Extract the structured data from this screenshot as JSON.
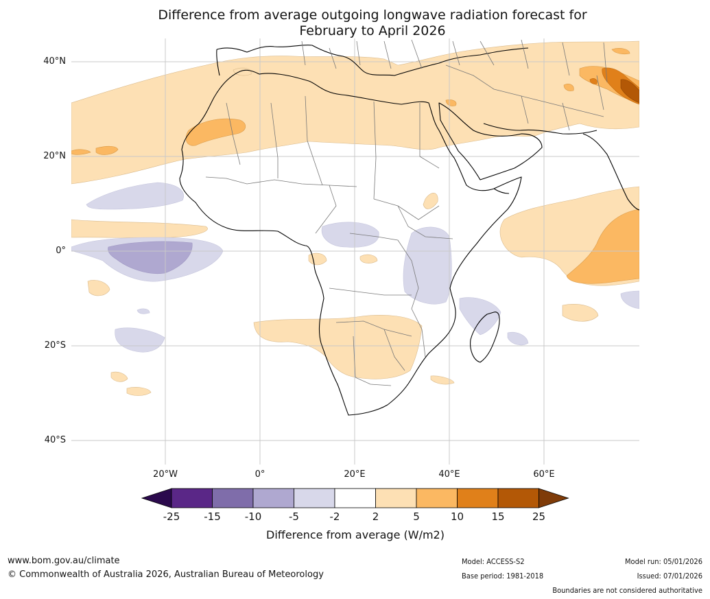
{
  "title": {
    "line1": "Difference from average outgoing longwave radiation forecast for",
    "line2": "February to April 2026"
  },
  "map": {
    "lat_labels": [
      "40°N",
      "20°N",
      "0°",
      "20°S",
      "40°S"
    ],
    "lon_labels": [
      "20°W",
      "0°",
      "20°E",
      "40°E",
      "60°E"
    ]
  },
  "legend": {
    "title": "Difference from average (W/m2)",
    "ticks": [
      "-25",
      "-15",
      "-10",
      "-5",
      "-2",
      "2",
      "5",
      "10",
      "15",
      "25"
    ],
    "colors": [
      "#2b0a4d",
      "#5a2787",
      "#7f6daa",
      "#afa8d0",
      "#d8d8ea",
      "#ffffff",
      "#fde0b4",
      "#fbb862",
      "#e0801a",
      "#b35806",
      "#7f3b08"
    ]
  },
  "footer": {
    "website": "www.bom.gov.au/climate",
    "copyright": "© Commonwealth of Australia 2026, Australian Bureau of Meteorology",
    "model": "Model: ACCESS-S2",
    "base_period": "Base period: 1981-2018",
    "model_run": "Model run: 05/01/2026",
    "issued": "Issued: 07/01/2026",
    "disclaimer": "Boundaries are not considered authoritative"
  }
}
